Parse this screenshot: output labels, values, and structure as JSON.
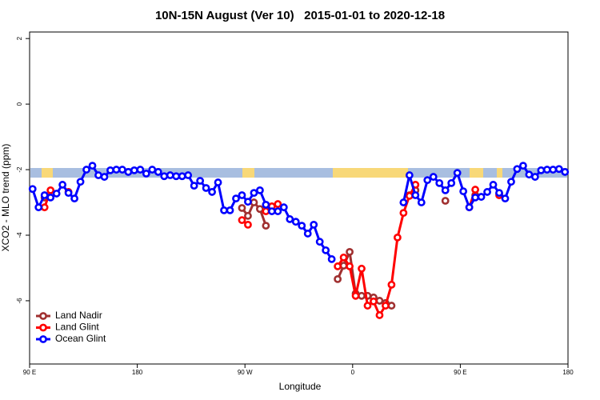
{
  "chart_data": {
    "type": "line",
    "title": "10N-15N August (Ver 10)   2015-01-01 to 2020-12-18",
    "x_label": "Longitude",
    "y_label": "XCO2 - MLO trend (ppm)",
    "xlim": [
      90,
      540
    ],
    "ylim": [
      -7.93,
      2.2
    ],
    "xticks": [
      {
        "value": 90,
        "label": "90 E"
      },
      180,
      {
        "value": 270,
        "label": "90 W"
      },
      {
        "value": 360,
        "label": "0"
      },
      {
        "value": 450,
        "label": "90 E"
      },
      {
        "value": 540,
        "label": "180"
      }
    ],
    "yticks": [
      -6,
      -4,
      -2,
      0,
      2
    ],
    "legend": "bottom-left",
    "series": [
      {
        "name": "Land Nadir",
        "color": "#a03030",
        "x": [
          102.5,
          107.5,
          267.5,
          272.5,
          277.5,
          282.5,
          287.5,
          292.5,
          347.5,
          352.5,
          357.5,
          362.5,
          367.5,
          372.5,
          377.5,
          382.5,
          387.5,
          392.5,
          397.5,
          407.5,
          412.5,
          417.5,
          437.5,
          442.5,
          462.5,
          467.5,
          482.5
        ],
        "values": [
          -2.85,
          null,
          -3.17,
          -3.41,
          -3.0,
          -3.2,
          -3.71,
          null,
          -5.34,
          -4.93,
          -4.51,
          -5.78,
          -5.85,
          -5.85,
          -5.9,
          -6.0,
          -6.07,
          -6.15,
          null,
          -2.78,
          -2.63,
          null,
          -2.95,
          null,
          -2.78,
          null,
          -2.73
        ]
      },
      {
        "name": "Land Glint",
        "color": "#ff0000",
        "x": [
          102.5,
          107.5,
          112.5,
          122.5,
          127.5,
          267.5,
          272.5,
          277.5,
          287.5,
          292.5,
          297.5,
          302.5,
          347.5,
          352.5,
          357.5,
          362.5,
          367.5,
          372.5,
          377.5,
          382.5,
          387.5,
          392.5,
          397.5,
          402.5,
          407.5,
          412.5,
          417.5,
          457.5,
          462.5,
          467.5,
          482.5
        ],
        "values": [
          -3.15,
          -2.63,
          null,
          -2.68,
          null,
          -3.54,
          -3.68,
          null,
          -3.27,
          -3.12,
          -3.05,
          null,
          -4.95,
          -4.68,
          -4.95,
          -5.85,
          -5.02,
          -6.15,
          -6.02,
          -6.44,
          -6.15,
          -5.51,
          -4.07,
          -3.32,
          -2.8,
          -2.46,
          null,
          -3.15,
          -2.61,
          null,
          -2.78
        ]
      },
      {
        "name": "Ocean Glint",
        "color": "#0000ff",
        "x": [
          92.5,
          97.5,
          102.5,
          107.5,
          112.5,
          117.5,
          122.5,
          127.5,
          132.5,
          137.5,
          142.5,
          147.5,
          152.5,
          157.5,
          162.5,
          167.5,
          172.5,
          177.5,
          182.5,
          187.5,
          192.5,
          197.5,
          202.5,
          207.5,
          212.5,
          217.5,
          222.5,
          227.5,
          232.5,
          237.5,
          242.5,
          247.5,
          252.5,
          257.5,
          262.5,
          267.5,
          272.5,
          277.5,
          282.5,
          287.5,
          292.5,
          297.5,
          302.5,
          307.5,
          312.5,
          317.5,
          322.5,
          327.5,
          332.5,
          337.5,
          342.5,
          347.5,
          402.5,
          407.5,
          412.5,
          417.5,
          422.5,
          427.5,
          432.5,
          437.5,
          442.5,
          447.5,
          452.5,
          457.5,
          462.5,
          467.5,
          472.5,
          477.5,
          482.5,
          487.5,
          492.5,
          497.5,
          502.5,
          507.5,
          512.5,
          517.5,
          522.5,
          527.5,
          532.5,
          537.5
        ],
        "values": [
          -2.59,
          -3.15,
          -2.78,
          -2.85,
          -2.73,
          -2.46,
          -2.71,
          -2.88,
          -2.37,
          -2.0,
          -1.88,
          -2.17,
          -2.22,
          -2.02,
          -2.0,
          -2.0,
          -2.07,
          -2.02,
          -2.0,
          -2.12,
          -2.0,
          -2.07,
          -2.2,
          -2.17,
          -2.2,
          -2.2,
          -2.17,
          -2.49,
          -2.34,
          -2.56,
          -2.68,
          -2.39,
          -3.24,
          -3.24,
          -2.88,
          -2.78,
          -2.98,
          -2.71,
          -2.63,
          -3.07,
          -3.27,
          -3.27,
          -3.15,
          -3.51,
          -3.59,
          -3.71,
          -3.95,
          -3.68,
          -4.2,
          -4.46,
          -4.73,
          null,
          -3.0,
          -2.17,
          -2.78,
          -3.0,
          -2.32,
          -2.22,
          -2.41,
          -2.63,
          -2.41,
          -2.1,
          -2.66,
          -3.15,
          -2.85,
          -2.83,
          -2.68,
          -2.46,
          -2.71,
          -2.88,
          -2.37,
          -1.98,
          -1.88,
          -2.15,
          -2.22,
          -2.02,
          -2.0,
          -2.0,
          -1.98,
          -2.07
        ]
      }
    ]
  }
}
